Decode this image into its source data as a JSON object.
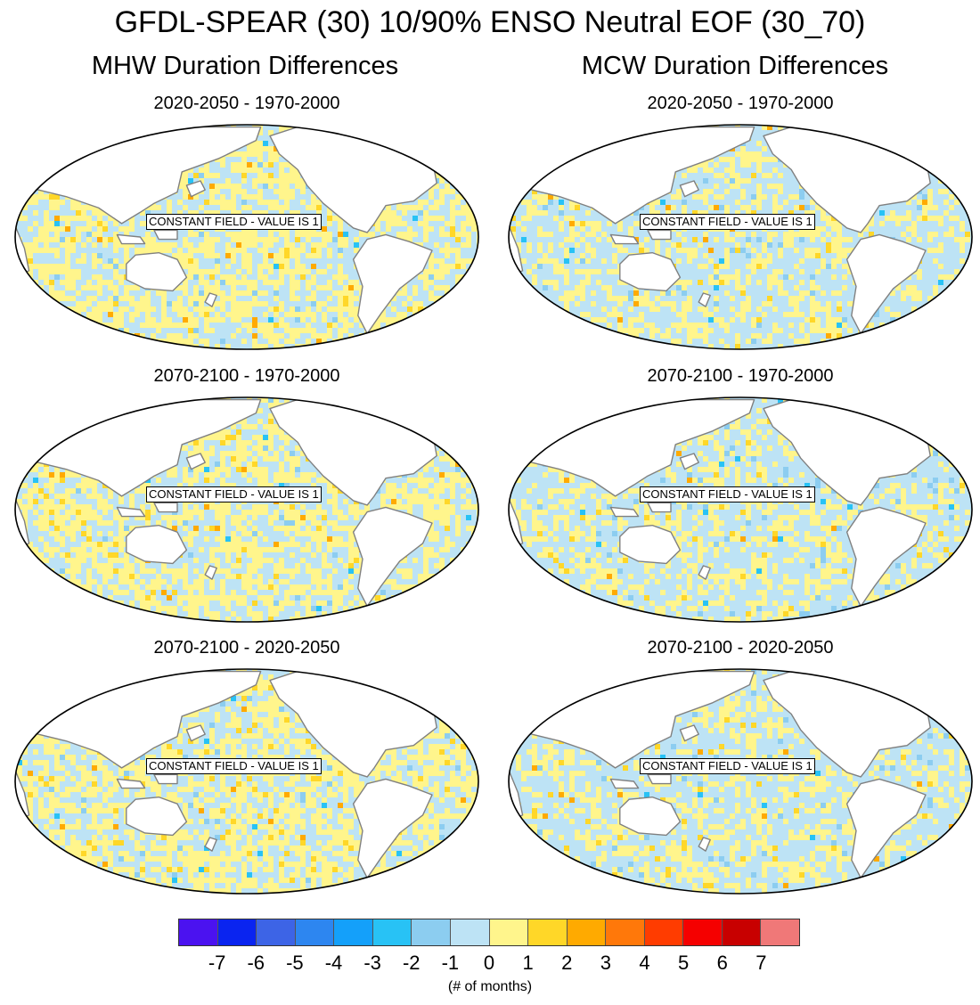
{
  "chart_data": {
    "type": "heatmap",
    "title": "GFDL-SPEAR (30) 10/90% ENSO Neutral EOF (30_70)",
    "columns": [
      "MHW Duration Differences",
      "MCW Duration Differences"
    ],
    "panels": [
      {
        "column": "MHW Duration Differences",
        "title": "2020-2050 - 1970-2000",
        "annotation": "CONSTANT FIELD - VALUE IS 1"
      },
      {
        "column": "MCW Duration Differences",
        "title": "2020-2050 - 1970-2000",
        "annotation": "CONSTANT FIELD - VALUE IS 1"
      },
      {
        "column": "MHW Duration Differences",
        "title": "2070-2100 - 1970-2000",
        "annotation": "CONSTANT FIELD - VALUE IS 1"
      },
      {
        "column": "MCW Duration Differences",
        "title": "2070-2100 - 1970-2000",
        "annotation": "CONSTANT FIELD - VALUE IS 1"
      },
      {
        "column": "MHW Duration Differences",
        "title": "2070-2100 - 2020-2050",
        "annotation": "CONSTANT FIELD - VALUE IS 1"
      },
      {
        "column": "MCW Duration Differences",
        "title": "2070-2100 - 2020-2050",
        "annotation": "CONSTANT FIELD - VALUE IS 1"
      }
    ],
    "colorbar": {
      "ticks": [
        "-7",
        "-6",
        "-5",
        "-4",
        "-3",
        "-2",
        "-1",
        "0",
        "1",
        "2",
        "3",
        "4",
        "5",
        "6",
        "7"
      ],
      "colors": [
        "#4b12f0",
        "#0a24f0",
        "#3d64e6",
        "#2d86f0",
        "#14a0fa",
        "#28c2f5",
        "#8ccdf0",
        "#bde3f5",
        "#fff58c",
        "#ffd728",
        "#ffaa00",
        "#ff780a",
        "#ff3c00",
        "#f50000",
        "#c80000",
        "#f07878"
      ],
      "units": "(# of months)"
    },
    "ocean_colors": {
      "neutral_negative": "#bde3f5",
      "neutral_positive": "#fff58c",
      "moderate_positive": "#ffd728",
      "strong_positive": "#ffaa00",
      "moderate_negative": "#8ccdf0",
      "strong_negative": "#28c2f5"
    },
    "land_color": "#ffffff",
    "coast_color": "#808080"
  }
}
